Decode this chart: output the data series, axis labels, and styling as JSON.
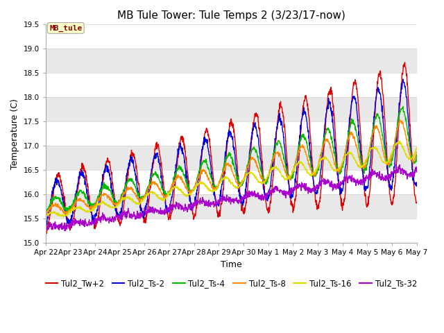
{
  "title": "MB Tule Tower: Tule Temps 2 (3/23/17-now)",
  "xlabel": "Time",
  "ylabel": "Temperature (C)",
  "ylim": [
    15.0,
    19.5
  ],
  "yticks": [
    15.0,
    15.5,
    16.0,
    16.5,
    17.0,
    17.5,
    18.0,
    18.5,
    19.0,
    19.5
  ],
  "xtick_labels": [
    "Apr 22",
    "Apr 23",
    "Apr 24",
    "Apr 25",
    "Apr 26",
    "Apr 27",
    "Apr 28",
    "Apr 29",
    "Apr 30",
    "May 1",
    "May 2",
    "May 3",
    "May 4",
    "May 5",
    "May 6",
    "May 7"
  ],
  "station_label": "MB_tule",
  "lines": [
    {
      "label": "Tul2_Tw+2",
      "color": "#dd0000"
    },
    {
      "label": "Tul2_Ts-2",
      "color": "#0000dd"
    },
    {
      "label": "Tul2_Ts-4",
      "color": "#00bb00"
    },
    {
      "label": "Tul2_Ts-8",
      "color": "#ff8800"
    },
    {
      "label": "Tul2_Ts-16",
      "color": "#dddd00"
    },
    {
      "label": "Tul2_Ts-32",
      "color": "#aa00cc"
    }
  ],
  "bg_band_color": "#e8e8e8",
  "bg_white_color": "#ffffff",
  "title_fontsize": 11,
  "axis_fontsize": 9,
  "tick_fontsize": 7.5,
  "legend_fontsize": 8.5,
  "linewidth": 1.0
}
